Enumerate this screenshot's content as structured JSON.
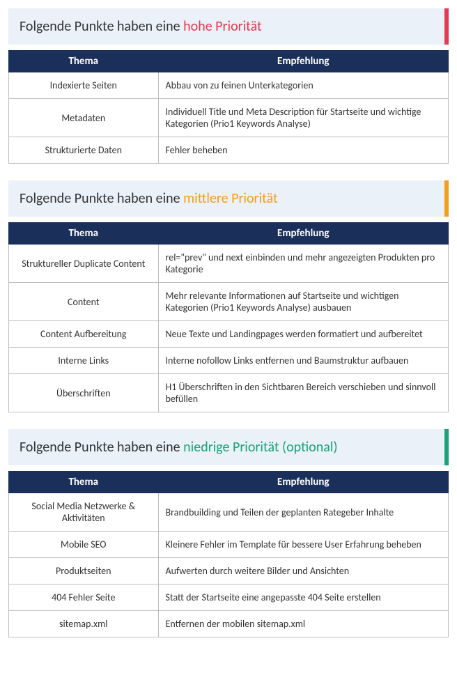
{
  "colors": {
    "header_bg": "#eaf1f9",
    "table_header_bg": "#1a2f5a",
    "table_header_text": "#ffffff",
    "cell_border": "#bfbfbf",
    "text": "#333333"
  },
  "sections": [
    {
      "accent_color": "#e63950",
      "title_prefix": "Folgende Punkte haben eine ",
      "title_priority": "hohe Priorität",
      "priority_color": "#e63950",
      "columns": [
        "Thema",
        "Empfehlung"
      ],
      "rows": [
        {
          "topic": "Indexierte Seiten",
          "rec": "Abbau von zu feinen Unterkategorien"
        },
        {
          "topic": "Metadaten",
          "rec": "Individuell Title und Meta Description für Startseite und wichtige Kategorien (Prio1 Keywords Analyse)"
        },
        {
          "topic": "Strukturierte Daten",
          "rec": "Fehler beheben"
        }
      ]
    },
    {
      "accent_color": "#f59c1a",
      "title_prefix": "Folgende Punkte haben eine ",
      "title_priority": "mittlere Priorität",
      "priority_color": "#f59c1a",
      "columns": [
        "Thema",
        "Empfehlung"
      ],
      "rows": [
        {
          "topic": "Struktureller Duplicate Content",
          "rec": "rel=\"prev\" und next einbinden und mehr angezeigten Produkten pro Kategorie"
        },
        {
          "topic": "Content",
          "rec": "Mehr relevante Informationen auf Startseite und wichtigen Kategorien (Prio1 Keywords Analyse) ausbauen"
        },
        {
          "topic": "Content Aufbereitung",
          "rec": "Neue Texte und Landingpages werden formatiert und aufbereitet"
        },
        {
          "topic": "Interne Links",
          "rec": "Interne nofollow Links entfernen und Baumstruktur aufbauen"
        },
        {
          "topic": "Überschriften",
          "rec": "H1 Überschriften in den Sichtbaren Bereich verschieben und sinnvoll befüllen"
        }
      ]
    },
    {
      "accent_color": "#1aa37a",
      "title_prefix": "Folgende Punkte haben eine ",
      "title_priority": "niedrige Priorität (optional)",
      "priority_color": "#1aa37a",
      "columns": [
        "Thema",
        "Empfehlung"
      ],
      "rows": [
        {
          "topic": "Social Media Netzwerke & Aktivitäten",
          "rec": "Brandbuilding und Teilen der geplanten Rategeber Inhalte"
        },
        {
          "topic": "Mobile SEO",
          "rec": "Kleinere Fehler im Template für bessere User Erfahrung beheben"
        },
        {
          "topic": "Produktseiten",
          "rec": "Aufwerten durch weitere Bilder und Ansichten"
        },
        {
          "topic": "404 Fehler Seite",
          "rec": "Statt der Startseite eine angepasste 404 Seite erstellen"
        },
        {
          "topic": "sitemap.xml",
          "rec": "Entfernen der mobilen sitemap.xml"
        }
      ]
    }
  ]
}
